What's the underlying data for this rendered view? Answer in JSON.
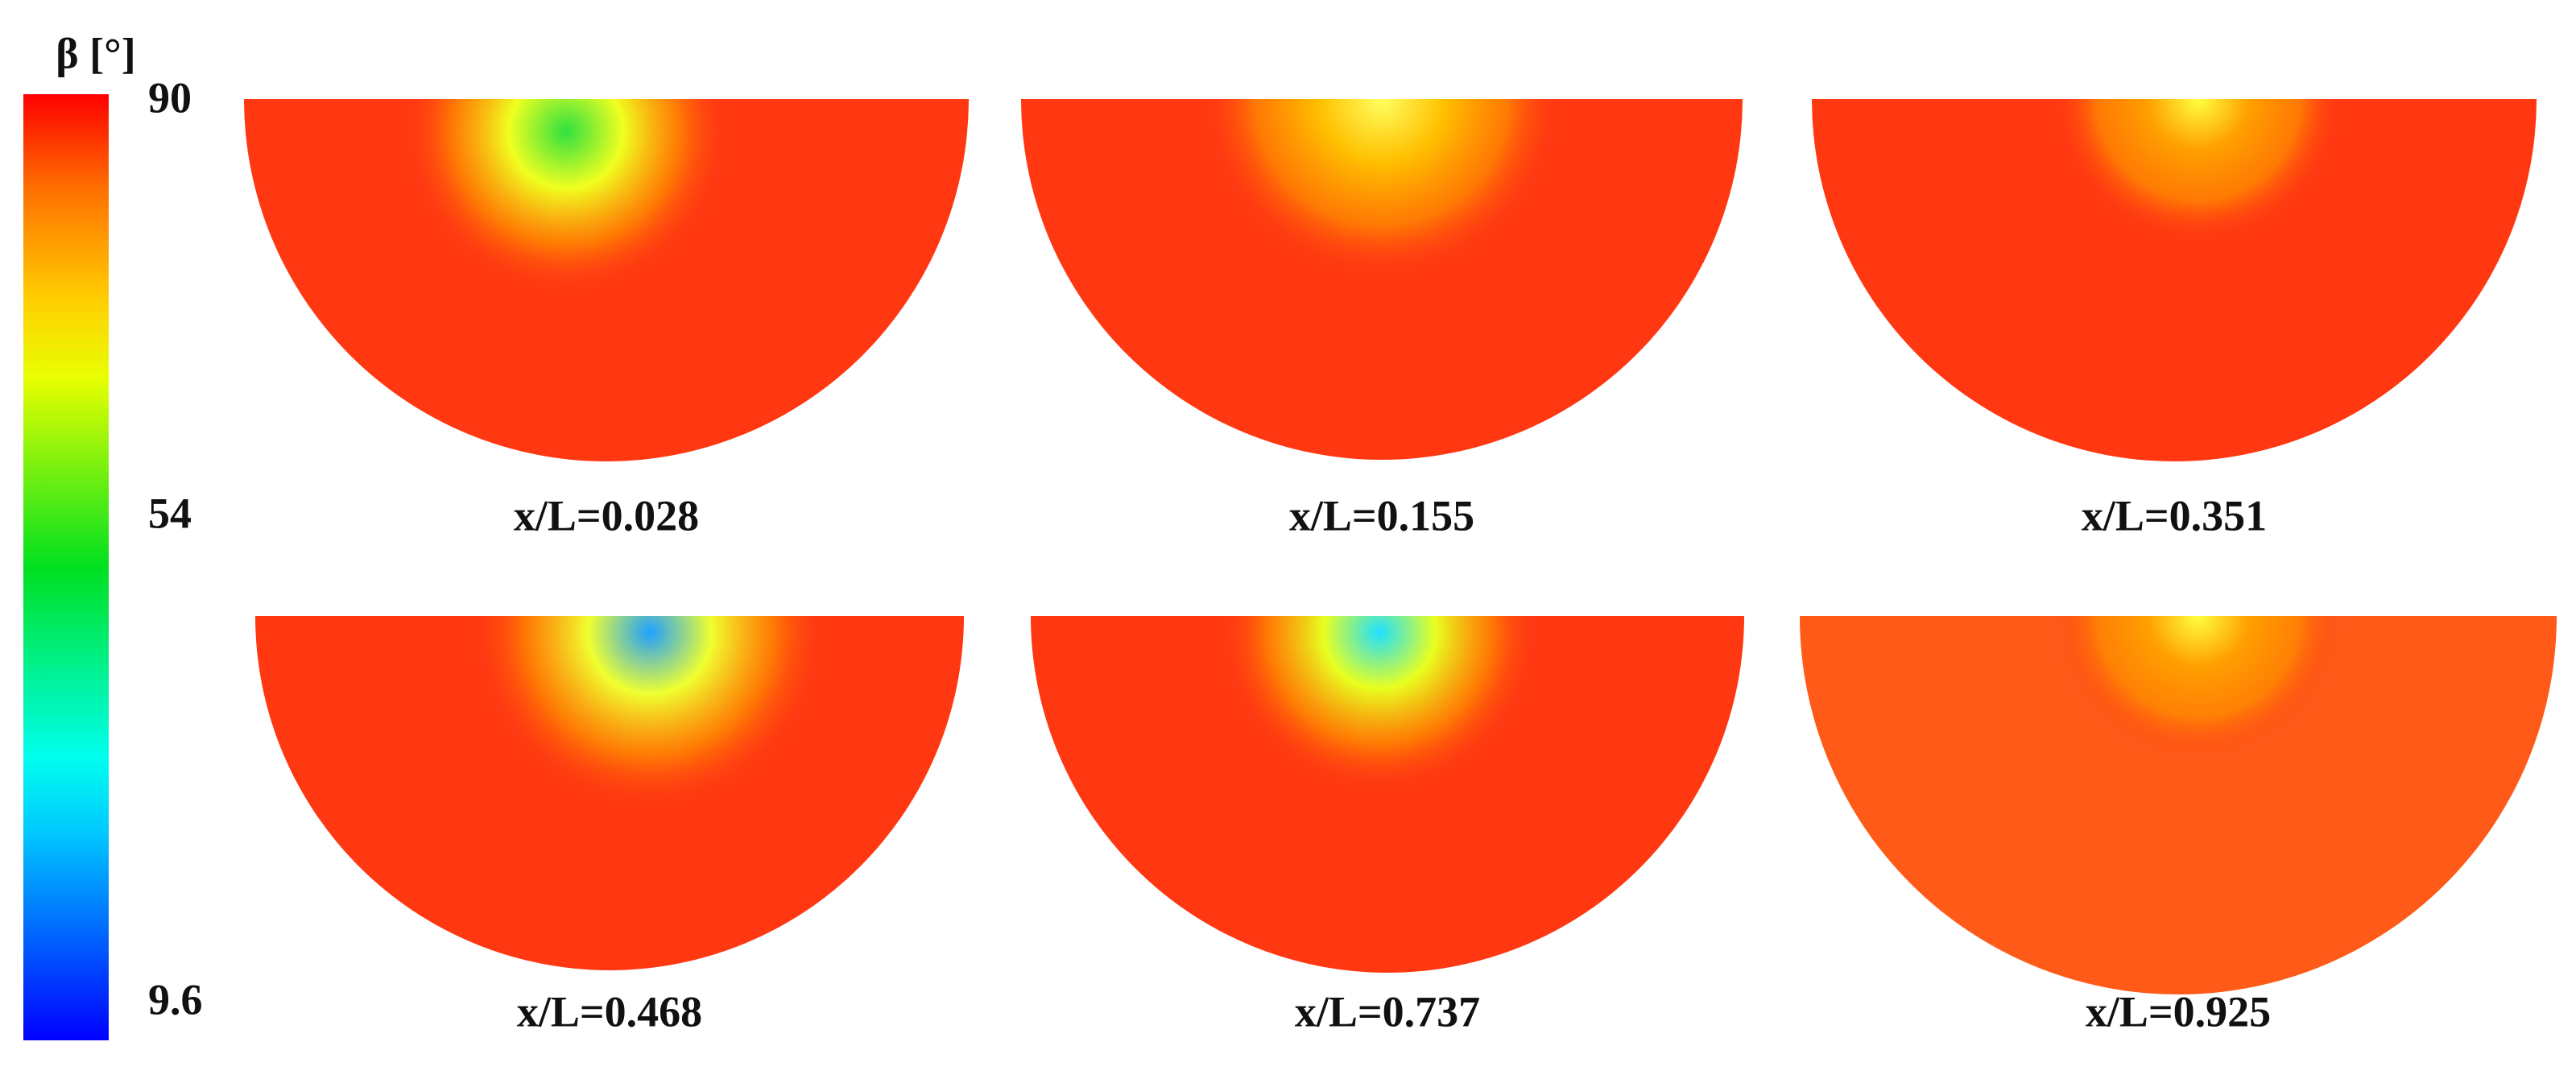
{
  "colorbar": {
    "title": "β [°]",
    "lim": [
      9.6,
      90
    ],
    "ticks": [
      90,
      54,
      9.6
    ]
  },
  "panels": [
    {
      "label": "x/L=0.028"
    },
    {
      "label": "x/L=0.155"
    },
    {
      "label": "x/L=0.351"
    },
    {
      "label": "x/L=0.468"
    },
    {
      "label": "x/L=0.737"
    },
    {
      "label": "x/L=0.925"
    }
  ]
}
